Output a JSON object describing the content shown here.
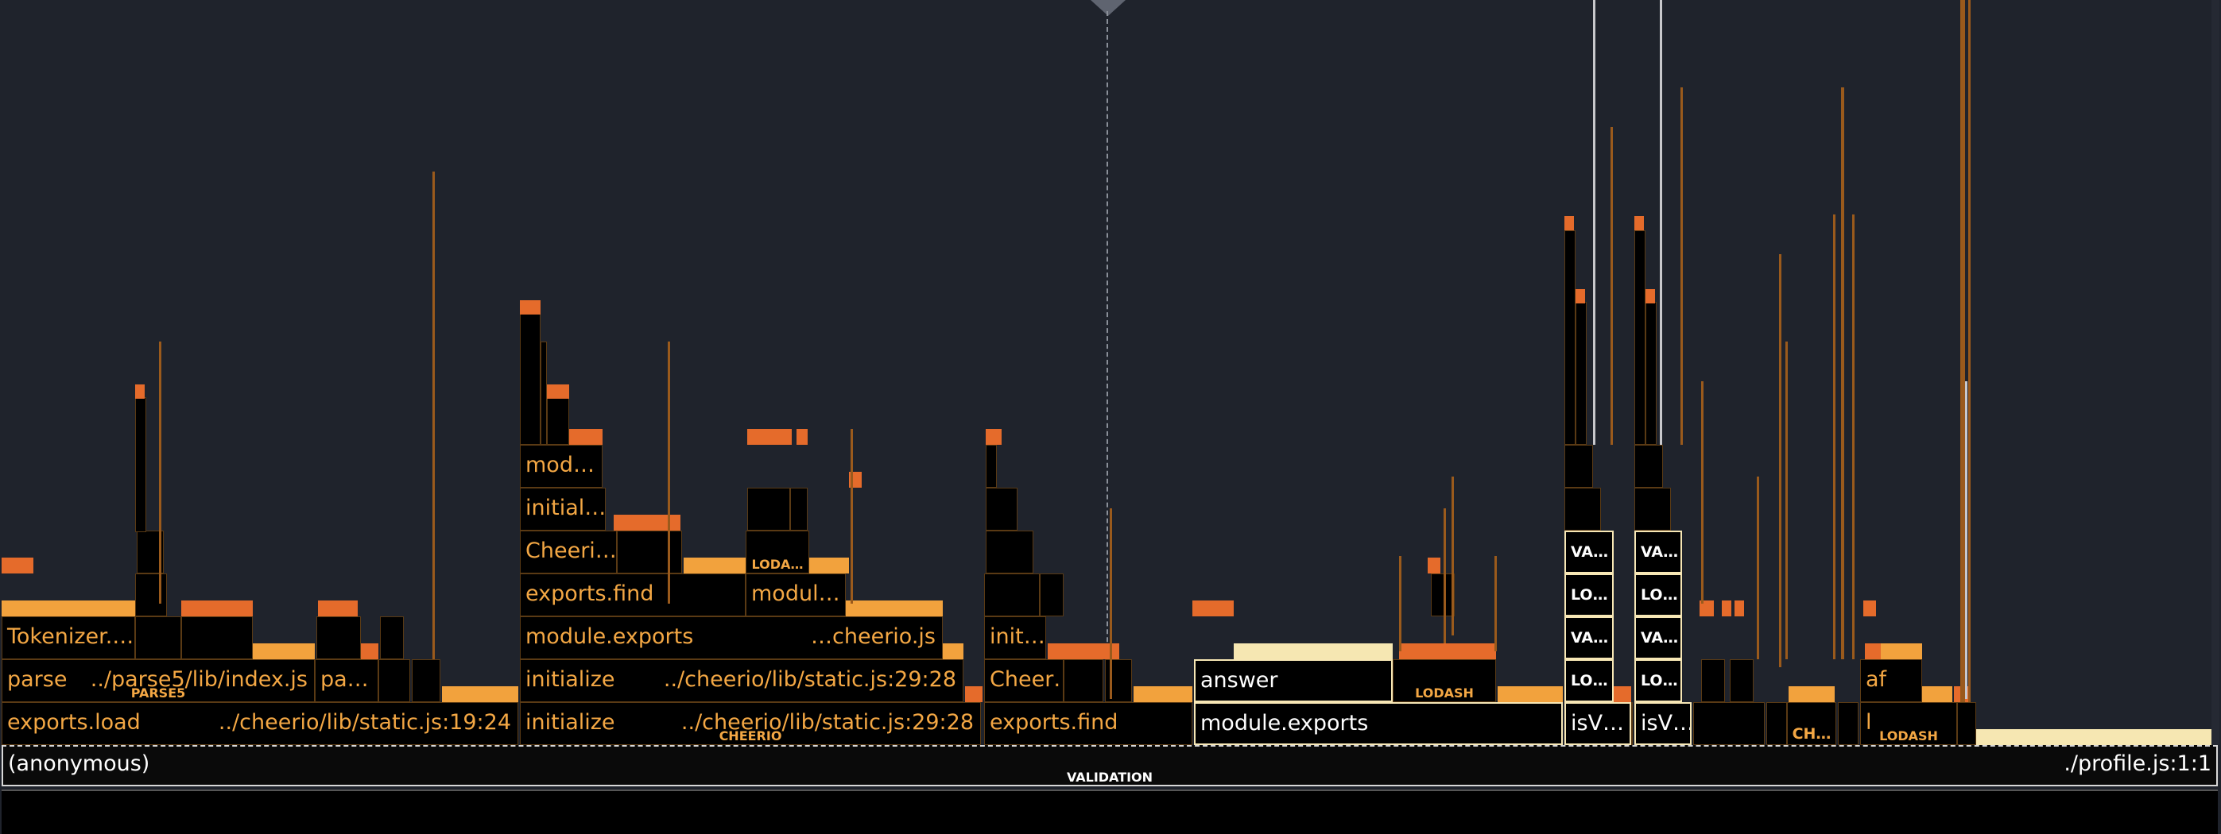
{
  "flamegraph": {
    "root": {
      "name": "(anonymous)",
      "file": "./profile.js:1:1",
      "tag": "VALIDATION"
    },
    "frames": {
      "f1": "exports.load",
      "f1_file": "../cheerio/lib/static.js:19:24",
      "f2": "parse",
      "f2_file": "../parse5/lib/index.js",
      "f2_tag": "PARSE5",
      "f3": "pa…",
      "f4": "Tokenizer.…",
      "f5": "initialize",
      "f5_file": "../cheerio/lib/static.js:29:28",
      "f5_tag": "CHEERIO",
      "f6": "initialize",
      "f6_file": "../cheerio/lib/static.js:29:28",
      "f7": "module.exports",
      "f7_file": "…cheerio.js",
      "f8": "exports.find",
      "f9": "modul…",
      "f10": "Cheeri…",
      "f11": "initial…",
      "f12": "mod…",
      "f13": "LODA…",
      "f14": "exports.find",
      "f15": "Cheer…",
      "f16": "init…",
      "f17": "module.exports",
      "f18": "answer",
      "f19": "LODASH",
      "f20": "isV…",
      "f21": "isV…",
      "f22": "LO…",
      "f23": "VA…",
      "f24": "LO…",
      "f25": "VA…",
      "f26": "LO…",
      "f27": "VA…",
      "f28": "LO…",
      "f29": "VA…",
      "f30": "CH…",
      "f31": "l",
      "f32": "LODASH",
      "f33": "af"
    }
  },
  "colors": {
    "background": "#1f232c",
    "frame_border": "#5a3a14",
    "text": "#f3a744",
    "hot": "#e56b2b",
    "warm": "#f2a23d",
    "pale": "#f6e7b2"
  }
}
